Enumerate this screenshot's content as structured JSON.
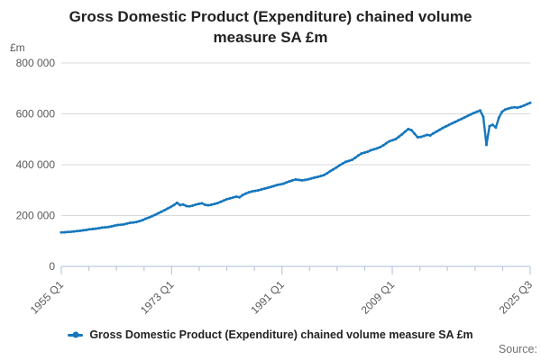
{
  "title": "Gross Domestic Product (Expenditure) chained volume measure SA £m",
  "y_unit_label": "£m",
  "source_label": "Source:",
  "legend": {
    "label": "Gross Domestic Product (Expenditure) chained volume measure SA £m"
  },
  "colors": {
    "line": "#1577BE",
    "grid": "#d9d9d9",
    "axis": "#bcc9de",
    "tick_text": "#595959",
    "title_text": "#222222",
    "source_text": "#707070"
  },
  "chart_data": {
    "type": "line",
    "title": "Gross Domestic Product (Expenditure) chained volume measure SA £m",
    "xlabel": "",
    "ylabel": "£m",
    "ylim": [
      0,
      800000
    ],
    "yticks": [
      0,
      200000,
      400000,
      600000,
      800000
    ],
    "grid": "horizontal",
    "legend_position": "bottom",
    "x_start": "1955 Q1",
    "x_end": "2025 Q3",
    "xtick_count": 18,
    "xtick_labels": [
      {
        "pos": 0,
        "label": "1955 Q1"
      },
      {
        "pos": 4,
        "label": "1973 Q1"
      },
      {
        "pos": 8,
        "label": "1991 Q1"
      },
      {
        "pos": 12,
        "label": "2009 Q1"
      },
      {
        "pos": 17,
        "label": "2025 Q3"
      }
    ],
    "series": [
      {
        "name": "Gross Domestic Product (Expenditure) chained volume measure SA £m",
        "values": [
          133500,
          134200,
          135100,
          136000,
          137300,
          138800,
          140000,
          141800,
          143400,
          145900,
          147000,
          148300,
          150100,
          152400,
          153500,
          154800,
          157100,
          160000,
          162800,
          163800,
          164900,
          168400,
          171200,
          172900,
          174600,
          178100,
          182000,
          187500,
          192000,
          197000,
          203000,
          209000,
          215000,
          221000,
          227500,
          233500,
          241000,
          250000,
          241000,
          243500,
          237500,
          236000,
          239000,
          243000,
          246000,
          248000,
          242000,
          240500,
          242500,
          245500,
          249000,
          254000,
          259000,
          264500,
          267500,
          271000,
          274500,
          272000,
          280500,
          286500,
          291500,
          295000,
          297000,
          299000,
          302500,
          306000,
          309000,
          312500,
          316000,
          320000,
          322500,
          325000,
          330000,
          334500,
          338500,
          342000,
          340000,
          338500,
          340000,
          342500,
          346000,
          349500,
          352000,
          355500,
          359000,
          366000,
          374000,
          381500,
          389000,
          397000,
          404500,
          411500,
          415000,
          419000,
          427000,
          436000,
          444000,
          447500,
          451000,
          456500,
          460500,
          464000,
          469000,
          476000,
          484500,
          492500,
          496500,
          501000,
          510000,
          519500,
          530000,
          540000,
          536000,
          522000,
          508000,
          509500,
          513000,
          517000,
          515000,
          523000,
          530000,
          537000,
          544000,
          550500,
          556500,
          562500,
          568000,
          574000,
          580000,
          586000,
          592000,
          598000,
          603500,
          608500,
          613000,
          588000,
          478000,
          552000,
          557000,
          546000,
          585000,
          608000,
          617000,
          621000,
          624000,
          626000,
          624500,
          628000,
          633000,
          638000,
          643500
        ]
      }
    ]
  }
}
